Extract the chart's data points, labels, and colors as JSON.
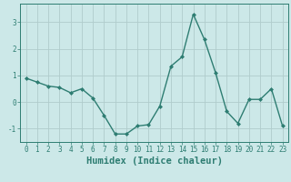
{
  "x": [
    0,
    1,
    2,
    3,
    4,
    5,
    6,
    7,
    8,
    9,
    10,
    11,
    12,
    13,
    14,
    15,
    16,
    17,
    18,
    19,
    20,
    21,
    22,
    23
  ],
  "y": [
    0.9,
    0.75,
    0.6,
    0.55,
    0.35,
    0.5,
    0.15,
    -0.5,
    -1.2,
    -1.2,
    -0.9,
    -0.85,
    -0.15,
    1.35,
    1.7,
    3.3,
    2.35,
    1.1,
    -0.35,
    -0.8,
    0.1,
    0.1,
    0.5,
    -0.9
  ],
  "line_color": "#2e7d72",
  "marker": "D",
  "marker_size": 2.0,
  "bg_color": "#cce8e8",
  "grid_color": "#b0cccc",
  "xlabel": "Humidex (Indice chaleur)",
  "xlim": [
    -0.5,
    23.5
  ],
  "ylim": [
    -1.5,
    3.7
  ],
  "yticks": [
    -1,
    0,
    1,
    2,
    3
  ],
  "xticks": [
    0,
    1,
    2,
    3,
    4,
    5,
    6,
    7,
    8,
    9,
    10,
    11,
    12,
    13,
    14,
    15,
    16,
    17,
    18,
    19,
    20,
    21,
    22,
    23
  ],
  "tick_fontsize": 5.5,
  "xlabel_fontsize": 7.5,
  "line_width": 1.0
}
